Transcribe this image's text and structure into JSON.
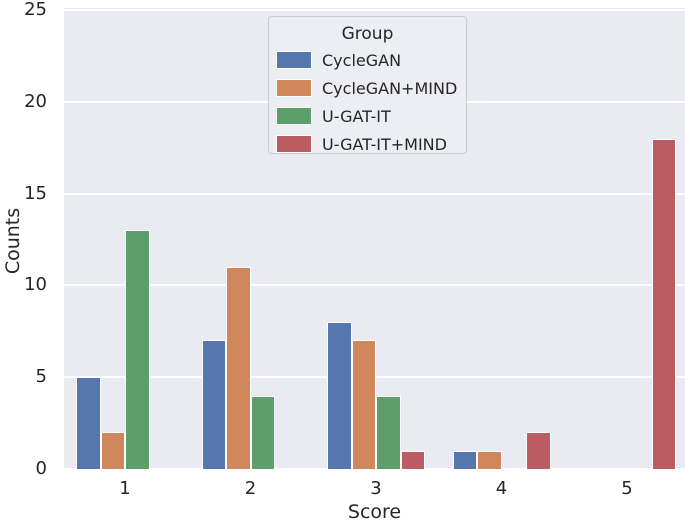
{
  "chart_data": {
    "type": "bar",
    "title": "",
    "xlabel": "Score",
    "ylabel": "Counts",
    "categories": [
      "1",
      "2",
      "3",
      "4",
      "5"
    ],
    "series": [
      {
        "name": "CycleGAN",
        "color": "#5577AD",
        "values": [
          5,
          7,
          8,
          1,
          0
        ]
      },
      {
        "name": "CycleGAN+MIND",
        "color": "#D1875C",
        "values": [
          2,
          11,
          7,
          1,
          0
        ]
      },
      {
        "name": "U-GAT-IT",
        "color": "#5C9F6C",
        "values": [
          13,
          4,
          4,
          0,
          0
        ]
      },
      {
        "name": "U-GAT-IT+MIND",
        "color": "#BB5C62",
        "values": [
          0,
          0,
          1,
          2,
          18
        ]
      }
    ],
    "ylim": [
      0,
      25
    ],
    "yticks": [
      0,
      5,
      10,
      15,
      20,
      25
    ],
    "legend": {
      "title": "Group",
      "position": "upper center"
    },
    "grid": "horizontal white gridlines",
    "colors": {
      "plot_background": "#EAEAF2",
      "gridline": "#FFFFFF",
      "text": "#262626",
      "legend_background": "#EDEDF4",
      "legend_border": "#CCCCCC"
    }
  }
}
